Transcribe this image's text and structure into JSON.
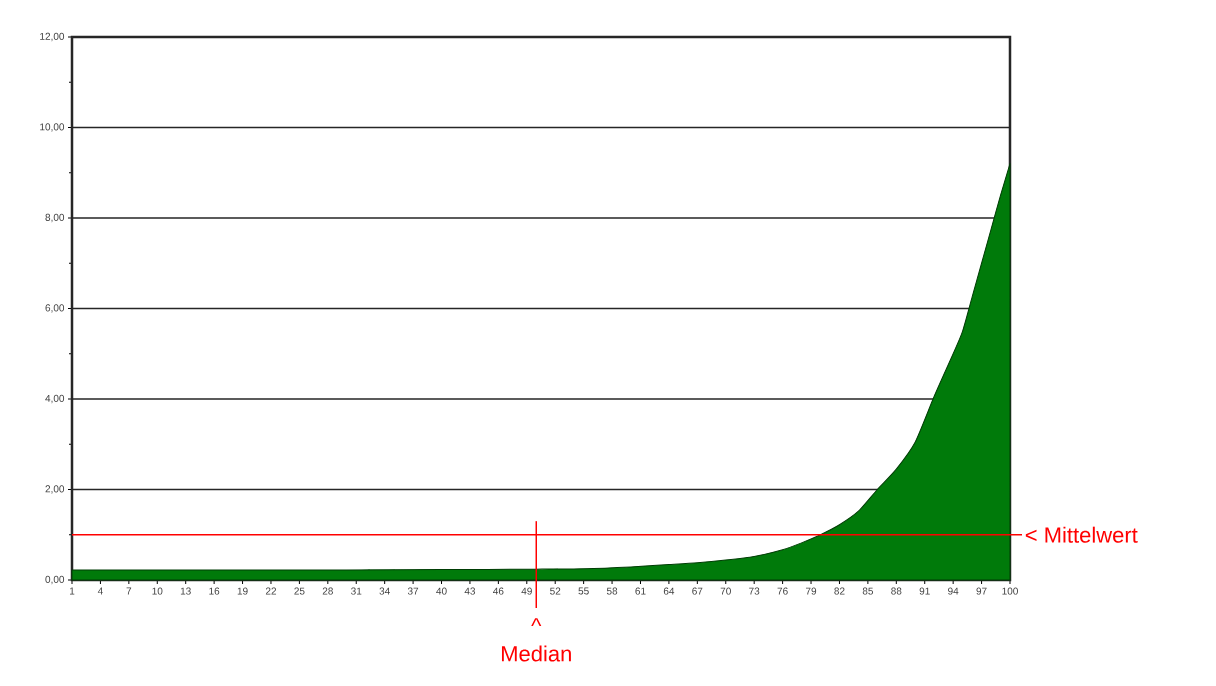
{
  "chart_data": {
    "type": "area",
    "x": [
      1,
      10,
      20,
      30,
      40,
      50,
      55,
      60,
      64,
      67,
      70,
      73,
      76,
      78,
      80,
      82,
      84,
      86,
      88,
      90,
      92,
      94,
      95,
      96,
      97,
      98,
      99,
      100
    ],
    "values": [
      0.22,
      0.22,
      0.22,
      0.22,
      0.23,
      0.24,
      0.25,
      0.29,
      0.34,
      0.38,
      0.44,
      0.52,
      0.67,
      0.82,
      1.0,
      1.22,
      1.52,
      2.0,
      2.45,
      3.05,
      4.06,
      5.0,
      5.5,
      6.25,
      7.0,
      7.75,
      8.5,
      9.2
    ],
    "color": "#007a0a",
    "xlim": [
      1,
      100
    ],
    "ylim": [
      0,
      12
    ],
    "xticks": [
      1,
      4,
      7,
      10,
      13,
      16,
      19,
      22,
      25,
      28,
      31,
      34,
      37,
      40,
      43,
      46,
      49,
      52,
      55,
      58,
      61,
      64,
      67,
      70,
      73,
      76,
      79,
      82,
      85,
      88,
      91,
      94,
      97,
      100
    ],
    "yticks": [
      {
        "value": 0,
        "label": "0,00"
      },
      {
        "value": 2,
        "label": "2,00"
      },
      {
        "value": 4,
        "label": "4,00"
      },
      {
        "value": 6,
        "label": "6,00"
      },
      {
        "value": 8,
        "label": "8,00"
      },
      {
        "value": 10,
        "label": "10,00"
      },
      {
        "value": 12,
        "label": "12,00"
      }
    ],
    "grid": "y",
    "ref_lines": [
      {
        "axis": "y",
        "value": 1,
        "label": "< Mittelwert",
        "color": "#ff0000"
      },
      {
        "axis": "x",
        "value": 50,
        "label": "^ Median",
        "color": "#ff0000"
      }
    ]
  }
}
